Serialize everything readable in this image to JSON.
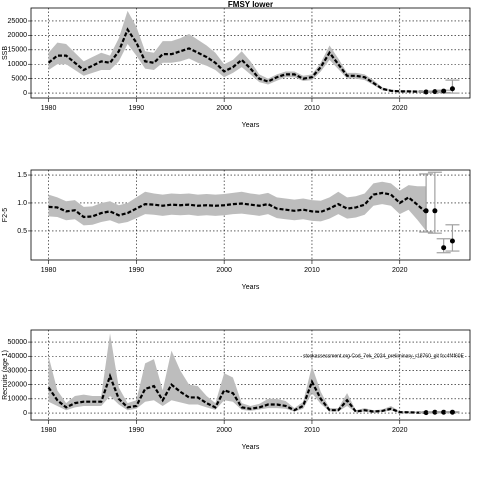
{
  "chart_data": [
    {
      "type": "line",
      "title": "FMSY lower",
      "xlabel": "Years",
      "ylabel": "SSB",
      "x": [
        1980,
        1981,
        1982,
        1983,
        1984,
        1985,
        1986,
        1987,
        1988,
        1989,
        1990,
        1991,
        1992,
        1993,
        1994,
        1995,
        1996,
        1997,
        1998,
        1999,
        2000,
        2001,
        2002,
        2003,
        2004,
        2005,
        2006,
        2007,
        2008,
        2009,
        2010,
        2011,
        2012,
        2013,
        2014,
        2015,
        2016,
        2017,
        2018,
        2019,
        2020,
        2021,
        2022,
        2023
      ],
      "series": [
        {
          "color": "#000000",
          "band_color": "#bdbdbd",
          "values": [
            10500,
            13000,
            13000,
            10500,
            8000,
            9500,
            11000,
            10500,
            14500,
            22000,
            17500,
            11000,
            10500,
            13500,
            13500,
            14500,
            15500,
            14000,
            12500,
            10500,
            7500,
            9000,
            11500,
            8500,
            5000,
            4000,
            5500,
            6500,
            6500,
            5000,
            5500,
            9000,
            14000,
            10000,
            6000,
            6000,
            5500,
            3500,
            1500,
            800,
            600,
            600,
            500,
            400
          ],
          "upper": [
            14000,
            17500,
            17000,
            14000,
            11000,
            12500,
            14000,
            13000,
            19000,
            28500,
            23000,
            14500,
            14000,
            18000,
            18000,
            19000,
            20500,
            18500,
            16500,
            14000,
            10000,
            11500,
            14500,
            11000,
            6500,
            5000,
            6500,
            7500,
            7500,
            6000,
            6500,
            10500,
            16500,
            12000,
            7000,
            7000,
            6500,
            4500,
            2000,
            1200,
            1000,
            1000,
            900,
            900
          ],
          "lower": [
            8000,
            10000,
            10000,
            8000,
            6000,
            7000,
            8000,
            8000,
            11000,
            17000,
            13000,
            8500,
            8000,
            10500,
            10500,
            11000,
            12000,
            10500,
            9500,
            8000,
            5500,
            7000,
            9000,
            6500,
            3800,
            3000,
            4300,
            5500,
            5500,
            4200,
            4500,
            7500,
            11500,
            8300,
            5000,
            5000,
            4500,
            2800,
            1000,
            500,
            300,
            300,
            200,
            100
          ]
        }
      ],
      "projection": {
        "color": "#000000",
        "bar_color": "#a0a0a0",
        "x": [
          2023,
          2024,
          2025,
          2026
        ],
        "values": [
          400,
          500,
          700,
          1500
        ],
        "lower": [
          300,
          300,
          200,
          0
        ],
        "upper": [
          500,
          700,
          1000,
          4500
        ]
      },
      "xlim": [
        1978,
        2028
      ],
      "ylim": [
        -1700,
        29500
      ],
      "xticks": [
        1980,
        1990,
        2000,
        2010,
        2020
      ],
      "yticks": [
        0,
        5000,
        10000,
        15000,
        20000,
        25000
      ],
      "grid": true
    },
    {
      "type": "line",
      "xlabel": "Years",
      "ylabel": "F2-5",
      "x": [
        1980,
        1981,
        1982,
        1983,
        1984,
        1985,
        1986,
        1987,
        1988,
        1989,
        1990,
        1991,
        1992,
        1993,
        1994,
        1995,
        1996,
        1997,
        1998,
        1999,
        2000,
        2001,
        2002,
        2003,
        2004,
        2005,
        2006,
        2007,
        2008,
        2009,
        2010,
        2011,
        2012,
        2013,
        2014,
        2015,
        2016,
        2017,
        2018,
        2019,
        2020,
        2021,
        2022,
        2023
      ],
      "series": [
        {
          "color": "#000000",
          "band_color": "#bdbdbd",
          "values": [
            0.93,
            0.92,
            0.85,
            0.87,
            0.75,
            0.76,
            0.82,
            0.85,
            0.78,
            0.82,
            0.9,
            0.98,
            0.97,
            0.95,
            0.97,
            0.96,
            0.97,
            0.95,
            0.96,
            0.95,
            0.96,
            0.98,
            0.99,
            0.97,
            0.95,
            0.98,
            0.9,
            0.88,
            0.86,
            0.88,
            0.85,
            0.84,
            0.9,
            0.98,
            0.9,
            0.92,
            0.97,
            1.15,
            1.18,
            1.15,
            1.0,
            1.1,
            0.97,
            0.83
          ],
          "upper": [
            1.15,
            1.1,
            1.03,
            1.05,
            0.93,
            0.94,
            1.0,
            1.03,
            0.96,
            1.0,
            1.1,
            1.2,
            1.17,
            1.15,
            1.17,
            1.16,
            1.17,
            1.15,
            1.16,
            1.15,
            1.16,
            1.18,
            1.2,
            1.17,
            1.15,
            1.18,
            1.1,
            1.08,
            1.06,
            1.08,
            1.05,
            1.04,
            1.1,
            1.2,
            1.1,
            1.12,
            1.17,
            1.35,
            1.38,
            1.35,
            1.22,
            1.32,
            1.3,
            1.3
          ],
          "lower": [
            0.76,
            0.75,
            0.69,
            0.71,
            0.6,
            0.61,
            0.66,
            0.69,
            0.63,
            0.66,
            0.73,
            0.8,
            0.79,
            0.77,
            0.79,
            0.78,
            0.79,
            0.77,
            0.78,
            0.77,
            0.78,
            0.8,
            0.81,
            0.79,
            0.77,
            0.8,
            0.73,
            0.71,
            0.69,
            0.71,
            0.68,
            0.67,
            0.72,
            0.8,
            0.72,
            0.74,
            0.79,
            0.95,
            0.98,
            0.95,
            0.8,
            0.88,
            0.7,
            0.5
          ]
        }
      ],
      "projection": {
        "color": "#000000",
        "bar_color": "#a0a0a0",
        "x": [
          2023,
          2024,
          2025,
          2026
        ],
        "values": [
          0.86,
          0.86,
          0.2,
          0.32
        ],
        "lower": [
          0.48,
          0.46,
          0.11,
          0.14
        ],
        "upper": [
          1.52,
          1.55,
          0.36,
          0.61
        ]
      },
      "xlim": [
        1978,
        2028
      ],
      "ylim": [
        -0.02,
        1.59
      ],
      "xticks": [
        1980,
        1990,
        2000,
        2010,
        2020
      ],
      "yticks": [
        0.5,
        {
          "value": 1,
          "label": "1.0"
        },
        1.5
      ],
      "grid": true
    },
    {
      "type": "line",
      "xlabel": "Years",
      "ylabel": "Recruits (age 1)",
      "annotation": "stockassessment.org Cod_7ek_2024_preliminary_r18760_git fcc4f4f60E",
      "x": [
        1980,
        1981,
        1982,
        1983,
        1984,
        1985,
        1986,
        1987,
        1988,
        1989,
        1990,
        1991,
        1992,
        1993,
        1994,
        1995,
        1996,
        1997,
        1998,
        1999,
        2000,
        2001,
        2002,
        2003,
        2004,
        2005,
        2006,
        2007,
        2008,
        2009,
        2010,
        2011,
        2012,
        2013,
        2014,
        2015,
        2016,
        2017,
        2018,
        2019,
        2020,
        2021,
        2022,
        2023
      ],
      "series": [
        {
          "color": "#000000",
          "band_color": "#bdbdbd",
          "values": [
            18000,
            9000,
            4000,
            7000,
            8000,
            8000,
            8000,
            26000,
            10000,
            4000,
            5000,
            17000,
            19000,
            9000,
            20000,
            15000,
            11000,
            11000,
            7000,
            4000,
            16000,
            14000,
            4000,
            3000,
            4000,
            6000,
            6000,
            5000,
            2000,
            5000,
            22000,
            10000,
            2000,
            2000,
            9000,
            1000,
            2000,
            1000,
            1500,
            3000,
            600,
            500,
            300,
            300
          ],
          "upper": [
            40000,
            16000,
            7000,
            12000,
            13000,
            12000,
            12000,
            56000,
            18000,
            7000,
            9000,
            35000,
            38000,
            16000,
            44000,
            30000,
            20000,
            19000,
            12000,
            7000,
            28000,
            25000,
            7000,
            5000,
            6500,
            10000,
            10000,
            8500,
            3500,
            8000,
            33000,
            15000,
            3500,
            3500,
            14000,
            2000,
            3500,
            2000,
            2500,
            5000,
            1200,
            1200,
            1000,
            1500
          ],
          "lower": [
            8000,
            5000,
            2000,
            4000,
            5000,
            5000,
            5000,
            12000,
            6000,
            2000,
            3000,
            8000,
            9000,
            5000,
            9000,
            7500,
            6000,
            6000,
            4000,
            2200,
            9000,
            8000,
            2200,
            1500,
            2500,
            3500,
            3500,
            3000,
            1000,
            3000,
            14000,
            6500,
            1200,
            1200,
            5000,
            500,
            1000,
            500,
            800,
            1800,
            200,
            100,
            50,
            20
          ]
        }
      ],
      "projection": {
        "color": "#000000",
        "bar_color": "#a0a0a0",
        "x": [
          2023,
          2024,
          2025,
          2026
        ],
        "values": [
          300,
          600,
          600,
          600
        ],
        "lower": [
          200,
          300,
          300,
          300
        ],
        "upper": [
          500,
          900,
          900,
          900
        ]
      },
      "xlim": [
        1978,
        2028
      ],
      "ylim": [
        -4900,
        58500
      ],
      "xticks": [
        1980,
        1990,
        2000,
        2010,
        2020
      ],
      "yticks": [
        0,
        10000,
        20000,
        30000,
        40000,
        50000
      ],
      "grid": true
    }
  ]
}
